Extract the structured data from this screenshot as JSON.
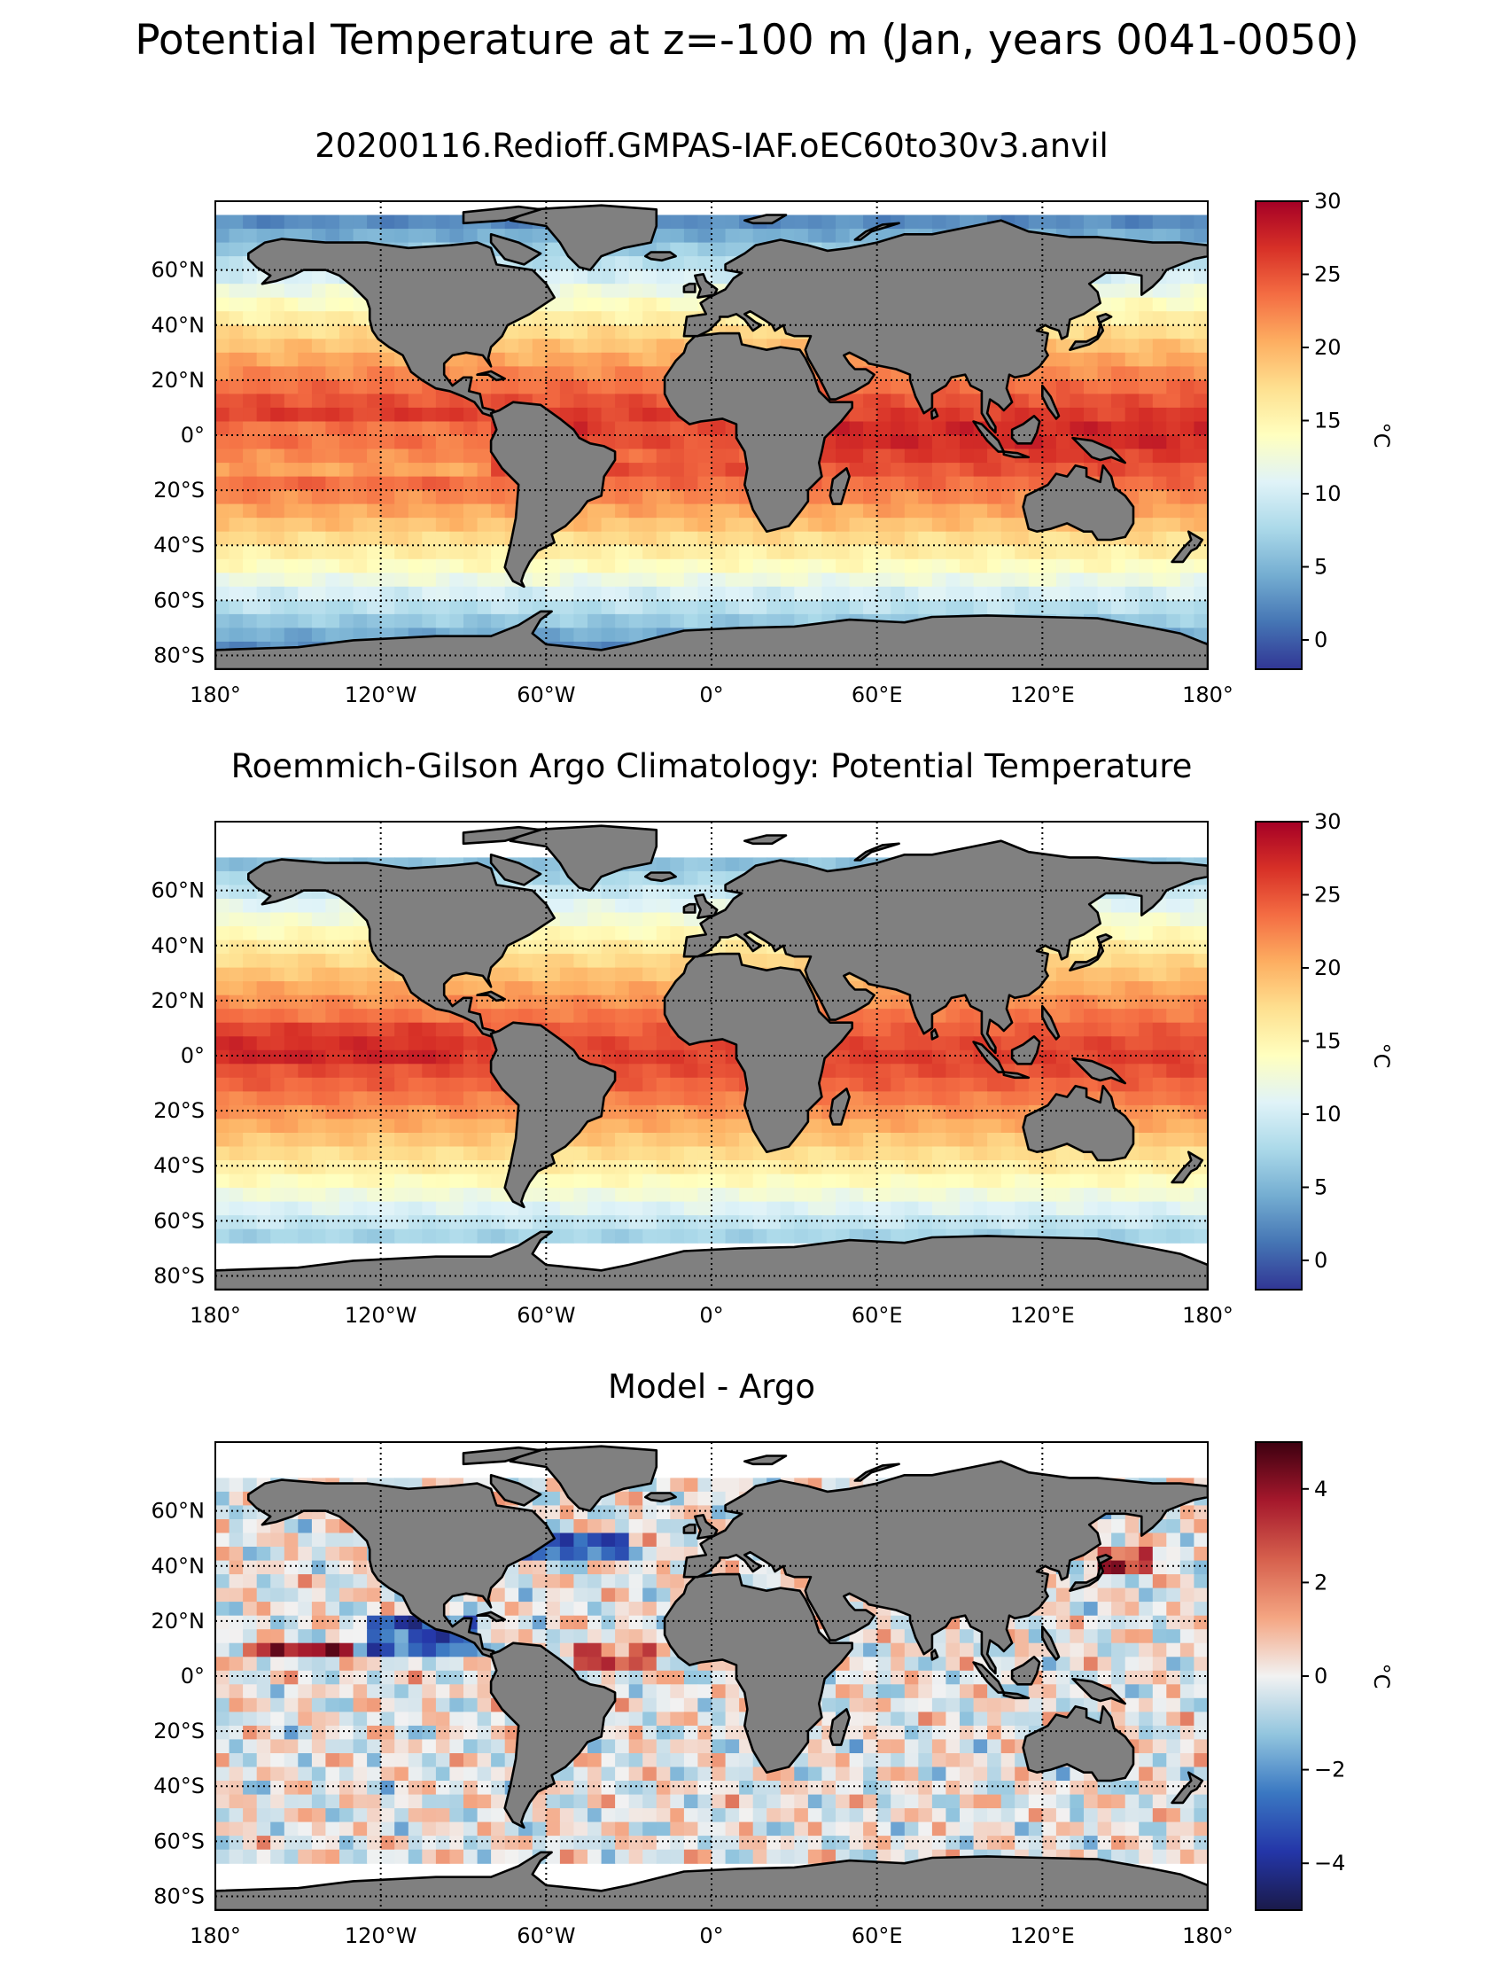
{
  "figure": {
    "title": "Potential Temperature at z=-100 m (Jan, years 0041-0050)"
  },
  "panels": [
    {
      "title": "20200116.Redioff.GMPAS-IAF.oEC60to30v3.anvil",
      "colorbar": {
        "label": "°C",
        "range": [
          -2,
          30
        ],
        "ticks": [
          "30",
          "25",
          "20",
          "15",
          "10",
          "5",
          "0"
        ],
        "tick_values": [
          30,
          25,
          20,
          15,
          10,
          5,
          0
        ],
        "colormap": "RdYlBu_r",
        "colors": [
          "#313695",
          "#4575b4",
          "#74add1",
          "#abd9e9",
          "#e0f3f8",
          "#ffffbf",
          "#fee090",
          "#fdae61",
          "#f46d43",
          "#d73027",
          "#a50026"
        ]
      },
      "field": "model"
    },
    {
      "title": "Roemmich-Gilson Argo Climatology: Potential Temperature",
      "colorbar": {
        "label": "°C",
        "range": [
          -2,
          30
        ],
        "ticks": [
          "30",
          "25",
          "20",
          "15",
          "10",
          "5",
          "0"
        ],
        "tick_values": [
          30,
          25,
          20,
          15,
          10,
          5,
          0
        ],
        "colormap": "RdYlBu_r",
        "colors": [
          "#313695",
          "#4575b4",
          "#74add1",
          "#abd9e9",
          "#e0f3f8",
          "#ffffbf",
          "#fee090",
          "#fdae61",
          "#f46d43",
          "#d73027",
          "#a50026"
        ]
      },
      "field": "argo"
    },
    {
      "title": "Model - Argo",
      "colorbar": {
        "label": "°C",
        "range": [
          -5,
          5
        ],
        "ticks": [
          "4",
          "2",
          "0",
          "−2",
          "−4"
        ],
        "tick_values": [
          4,
          2,
          0,
          -2,
          -4
        ],
        "colormap": "RdBu_r",
        "colors": [
          "#1a1a4a",
          "#2436a8",
          "#3a78c2",
          "#92c5de",
          "#f2f2f2",
          "#f4a582",
          "#d6604d",
          "#a5182c",
          "#3d0010"
        ]
      },
      "field": "diff"
    }
  ],
  "map_axes": {
    "lon_range": [
      -180,
      180
    ],
    "lat_range": [
      -85,
      85
    ],
    "lon_ticks": [
      -180,
      -120,
      -60,
      0,
      60,
      120,
      180
    ],
    "lon_tick_labels": [
      "180°",
      "120°W",
      "60°W",
      "0°",
      "60°E",
      "120°E",
      "180°"
    ],
    "lat_ticks": [
      60,
      40,
      20,
      0,
      -20,
      -40,
      -60,
      -80
    ],
    "lat_tick_labels": [
      "60°N",
      "40°N",
      "20°N",
      "0°",
      "20°S",
      "40°S",
      "60°S",
      "80°S"
    ],
    "grid": "dotted",
    "land_color": "#808080",
    "missing_color": "#ffffff"
  }
}
